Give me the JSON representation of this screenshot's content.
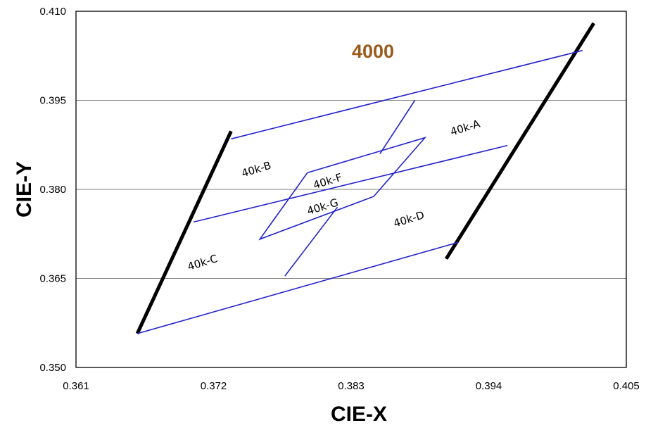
{
  "chart_data": {
    "type": "line",
    "title": "4000",
    "xlabel": "CIE-X",
    "ylabel": "CIE-Y",
    "xlim": [
      0.361,
      0.405
    ],
    "ylim": [
      0.35,
      0.41
    ],
    "x_ticks": [
      "0.361",
      "0.372",
      "0.383",
      "0.394",
      "0.405"
    ],
    "y_ticks": [
      "0.350",
      "0.365",
      "0.380",
      "0.395",
      "0.410"
    ],
    "grid": "horizontal",
    "colors": {
      "title": "#9a5b1c",
      "region": "#2222cc",
      "boundary": "#000000",
      "grid": "#808080"
    },
    "series": [
      {
        "kind": "boundary",
        "points": [
          [
            0.3659,
            0.3557
          ],
          [
            0.3734,
            0.3898
          ]
        ]
      },
      {
        "kind": "boundary",
        "points": [
          [
            0.3906,
            0.3683
          ],
          [
            0.4024,
            0.408
          ]
        ]
      },
      {
        "kind": "region",
        "points": [
          [
            0.3734,
            0.3885
          ],
          [
            0.4015,
            0.4034
          ]
        ]
      },
      {
        "kind": "region",
        "points": [
          [
            0.3704,
            0.3745
          ],
          [
            0.3955,
            0.3874
          ]
        ]
      },
      {
        "kind": "region",
        "points": [
          [
            0.3659,
            0.3557
          ],
          [
            0.3916,
            0.3711
          ]
        ]
      },
      {
        "kind": "region",
        "points": [
          [
            0.3881,
            0.395
          ],
          [
            0.3853,
            0.386
          ]
        ]
      },
      {
        "kind": "region",
        "points": [
          [
            0.3819,
            0.377
          ],
          [
            0.3777,
            0.3654
          ]
        ]
      },
      {
        "kind": "region",
        "points": [
          [
            0.3795,
            0.3828
          ],
          [
            0.3889,
            0.3887
          ],
          [
            0.3848,
            0.3788
          ],
          [
            0.3757,
            0.3716
          ],
          [
            0.3795,
            0.3828
          ]
        ]
      }
    ],
    "region_labels": [
      {
        "text": "40k-A",
        "x": 0.3922,
        "y": 0.3898,
        "angle": -17
      },
      {
        "text": "40k-B",
        "x": 0.3755,
        "y": 0.3828,
        "angle": -17
      },
      {
        "text": "40k-F",
        "x": 0.3812,
        "y": 0.3808,
        "angle": -17
      },
      {
        "text": "40k-G",
        "x": 0.3808,
        "y": 0.3765,
        "angle": -17
      },
      {
        "text": "40k-D",
        "x": 0.3877,
        "y": 0.3744,
        "angle": -17
      },
      {
        "text": "40k-C",
        "x": 0.3712,
        "y": 0.3671,
        "angle": -17
      }
    ]
  }
}
